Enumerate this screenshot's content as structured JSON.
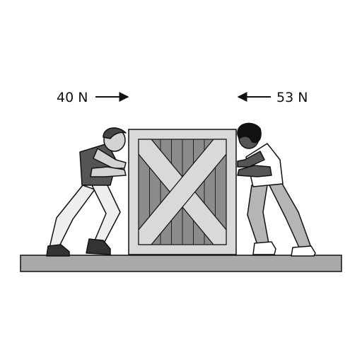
{
  "forces": {
    "left": {
      "label": "40 N",
      "direction": "right"
    },
    "right": {
      "label": "53 N",
      "direction": "left"
    }
  },
  "colors": {
    "outline": "#111111",
    "ground": "#a9a9a9",
    "crate_frame": "#d9d9d9",
    "crate_planks": "#8c8c8c",
    "shirt_left": "#555555",
    "shirt_right": "#ffffff",
    "pants_left": "#eeeeee",
    "pants_right": "#b5b5b5",
    "skin": "#d2d2d2"
  }
}
